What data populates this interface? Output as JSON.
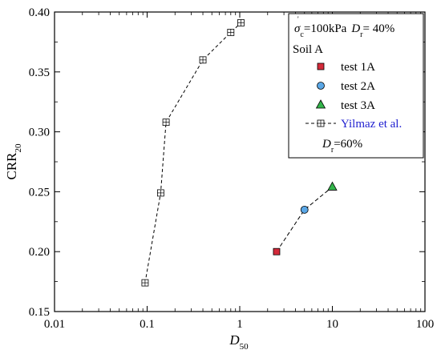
{
  "chart_data": {
    "type": "scatter",
    "xlabel": "D",
    "xlabel_sub": "50",
    "ylabel": "CRR",
    "ylabel_sub": "20",
    "x_scale": "log",
    "xlim": [
      0.01,
      100
    ],
    "ylim": [
      0.15,
      0.4
    ],
    "x_ticks": [
      0.01,
      0.1,
      1,
      10,
      100
    ],
    "x_tick_labels": [
      "0.01",
      "0.1",
      "1",
      "10",
      "100"
    ],
    "y_ticks": [
      0.15,
      0.2,
      0.25,
      0.3,
      0.35,
      0.4
    ],
    "y_tick_labels": [
      "0.15",
      "0.20",
      "0.25",
      "0.30",
      "0.35",
      "0.40"
    ],
    "grid": false,
    "legend_position": "top-right",
    "legend": {
      "condition_sigma": "σ",
      "condition_sigma_sub": "c",
      "condition_value": "=100kPa",
      "condition_dr": "D",
      "condition_dr_sub": "r",
      "condition_dr_value": "= 40%",
      "group_title": "Soil A",
      "yilmaz_dr": "D",
      "yilmaz_dr_sub": "r",
      "yilmaz_dr_value": "=60%"
    },
    "series": [
      {
        "name": "test 1A",
        "marker": "square",
        "color": "#d42a3a",
        "x": [
          2.5
        ],
        "y": [
          0.2
        ]
      },
      {
        "name": "test 2A",
        "marker": "circle",
        "color": "#5aa7e6",
        "x": [
          5.0
        ],
        "y": [
          0.235
        ]
      },
      {
        "name": "test 3A",
        "marker": "triangle",
        "color": "#33b44a",
        "x": [
          10.0
        ],
        "y": [
          0.254
        ]
      },
      {
        "name": "Yilmaz et al.",
        "marker": "boxed-plus",
        "line": "dashed",
        "color": "#1f1fd0",
        "x": [
          0.095,
          0.14,
          0.16,
          0.4,
          0.8,
          1.03
        ],
        "y": [
          0.174,
          0.249,
          0.308,
          0.36,
          0.383,
          0.391
        ]
      }
    ],
    "test_trend_line": {
      "style": "dashed",
      "x": [
        2.5,
        5.0,
        10.0
      ],
      "y": [
        0.2,
        0.235,
        0.254
      ]
    }
  }
}
